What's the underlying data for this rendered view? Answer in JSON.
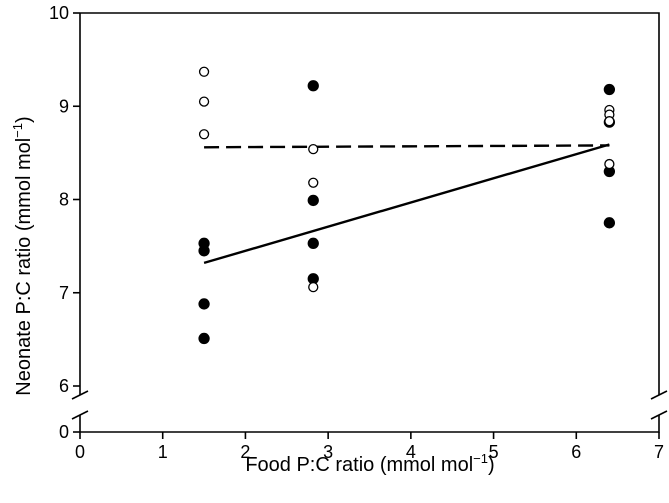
{
  "chart_data": {
    "type": "scatter",
    "xlabel": "Food P:C ratio (mmol mol",
    "xlabel_sup": "−1",
    "xlabel_end": ")",
    "ylabel": "Neonate P:C ratio (mmol mol",
    "ylabel_sup": "−1",
    "ylabel_end": ")",
    "xlim": [
      0,
      7
    ],
    "ylim": [
      6,
      10
    ],
    "y_axis_break": true,
    "x_ticks": [
      "0",
      "1",
      "2",
      "3",
      "4",
      "5",
      "6",
      "7"
    ],
    "y_ticks": [
      "0",
      "6",
      "7",
      "8",
      "9",
      "10"
    ],
    "grid": false,
    "series": [
      {
        "marker": "filled-circle",
        "x": [
          1.5,
          1.5,
          1.5,
          1.5,
          2.82,
          2.82,
          2.82,
          2.82,
          6.4,
          6.4,
          6.4,
          6.4
        ],
        "y": [
          7.53,
          7.45,
          6.88,
          6.51,
          9.22,
          7.99,
          7.53,
          7.15,
          9.18,
          8.83,
          8.3,
          7.75
        ]
      },
      {
        "marker": "open-circle",
        "x": [
          1.5,
          1.5,
          1.5,
          2.82,
          2.82,
          2.82,
          6.4,
          6.4,
          6.4,
          6.4
        ],
        "y": [
          9.37,
          9.05,
          8.7,
          8.54,
          8.18,
          7.06,
          8.96,
          8.91,
          8.84,
          8.38
        ]
      }
    ],
    "lines": [
      {
        "style": "solid",
        "x": [
          1.5,
          6.4
        ],
        "y": [
          7.32,
          8.59
        ]
      },
      {
        "style": "dashed",
        "x": [
          1.5,
          6.4
        ],
        "y": [
          8.56,
          8.58
        ]
      }
    ]
  }
}
